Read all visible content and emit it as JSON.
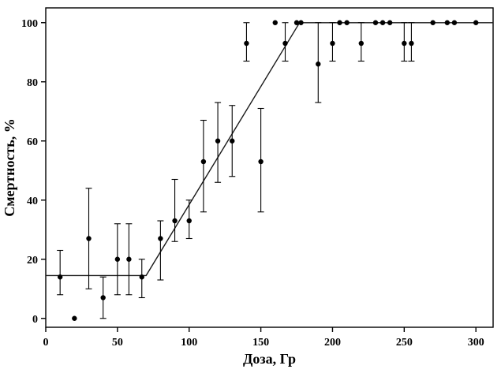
{
  "chart_data": {
    "type": "scatter",
    "title": "",
    "xlabel": "Доза, Гр",
    "ylabel": "Смертность, %",
    "xlim": [
      0,
      312
    ],
    "ylim": [
      -3,
      105
    ],
    "x_ticks": [
      0,
      50,
      100,
      150,
      200,
      250,
      300
    ],
    "y_ticks": [
      0,
      20,
      40,
      60,
      80,
      100
    ],
    "grid": false,
    "legend": "none",
    "points": [
      {
        "x": 10,
        "y": 14,
        "lo": 8,
        "hi": 23
      },
      {
        "x": 20,
        "y": 0,
        "lo": 0,
        "hi": 0
      },
      {
        "x": 30,
        "y": 27,
        "lo": 10,
        "hi": 44
      },
      {
        "x": 40,
        "y": 7,
        "lo": 0,
        "hi": 14
      },
      {
        "x": 50,
        "y": 20,
        "lo": 8,
        "hi": 32
      },
      {
        "x": 58,
        "y": 20,
        "lo": 8,
        "hi": 32
      },
      {
        "x": 67,
        "y": 14,
        "lo": 7,
        "hi": 20
      },
      {
        "x": 80,
        "y": 27,
        "lo": 13,
        "hi": 33
      },
      {
        "x": 90,
        "y": 33,
        "lo": 26,
        "hi": 47
      },
      {
        "x": 100,
        "y": 33,
        "lo": 27,
        "hi": 40
      },
      {
        "x": 110,
        "y": 53,
        "lo": 36,
        "hi": 67
      },
      {
        "x": 120,
        "y": 60,
        "lo": 46,
        "hi": 73
      },
      {
        "x": 130,
        "y": 60,
        "lo": 48,
        "hi": 72
      },
      {
        "x": 140,
        "y": 93,
        "lo": 87,
        "hi": 100
      },
      {
        "x": 150,
        "y": 53,
        "lo": 36,
        "hi": 71
      },
      {
        "x": 160,
        "y": 100,
        "lo": 100,
        "hi": 100
      },
      {
        "x": 167,
        "y": 93,
        "lo": 87,
        "hi": 100
      },
      {
        "x": 175,
        "y": 100,
        "lo": 100,
        "hi": 100
      },
      {
        "x": 178,
        "y": 100,
        "lo": 100,
        "hi": 100
      },
      {
        "x": 190,
        "y": 86,
        "lo": 73,
        "hi": 100
      },
      {
        "x": 200,
        "y": 93,
        "lo": 87,
        "hi": 100
      },
      {
        "x": 205,
        "y": 100,
        "lo": 100,
        "hi": 100
      },
      {
        "x": 210,
        "y": 100,
        "lo": 100,
        "hi": 100
      },
      {
        "x": 220,
        "y": 93,
        "lo": 87,
        "hi": 100
      },
      {
        "x": 230,
        "y": 100,
        "lo": 100,
        "hi": 100
      },
      {
        "x": 235,
        "y": 100,
        "lo": 100,
        "hi": 100
      },
      {
        "x": 240,
        "y": 100,
        "lo": 100,
        "hi": 100
      },
      {
        "x": 250,
        "y": 93,
        "lo": 87,
        "hi": 100
      },
      {
        "x": 255,
        "y": 93,
        "lo": 87,
        "hi": 100
      },
      {
        "x": 270,
        "y": 100,
        "lo": 100,
        "hi": 100
      },
      {
        "x": 280,
        "y": 100,
        "lo": 100,
        "hi": 100
      },
      {
        "x": 285,
        "y": 100,
        "lo": 100,
        "hi": 100
      },
      {
        "x": 300,
        "y": 100,
        "lo": 100,
        "hi": 100
      }
    ],
    "fit_line": [
      [
        0,
        14.5
      ],
      [
        70,
        14.5
      ],
      [
        177,
        100
      ],
      [
        312,
        100
      ]
    ],
    "colors": {
      "points": "#000000",
      "error_bars": "#000000",
      "fit_line": "#1a1a1a",
      "axis": "#000000",
      "background": "#ffffff"
    }
  }
}
